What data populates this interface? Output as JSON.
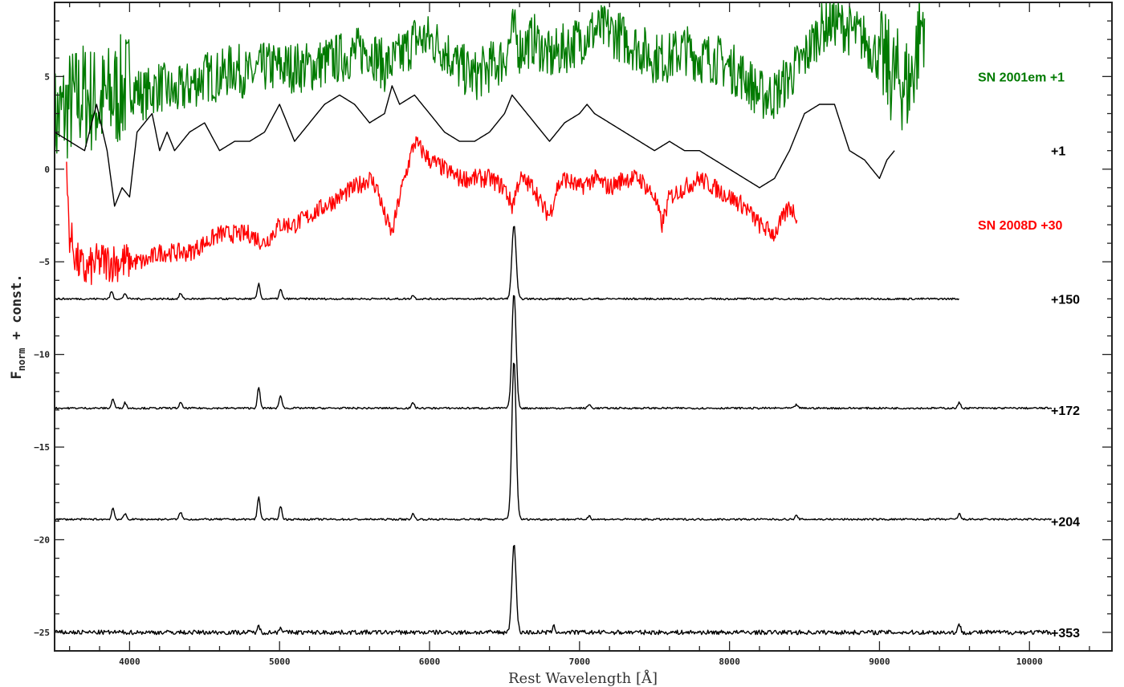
{
  "chart_data": {
    "type": "line",
    "title": "",
    "xlabel": "Rest Wavelength [Å]",
    "ylabel": "F",
    "ylabel_subscript": "norm",
    "ylabel_suffix": " + const.",
    "xlim": [
      3500,
      10550
    ],
    "ylim": [
      -26,
      9
    ],
    "x_ticks": [
      4000,
      5000,
      6000,
      7000,
      8000,
      9000,
      10000
    ],
    "x_tick_labels": [
      "4000",
      "5000",
      "6000",
      "7000",
      "8000",
      "9000",
      "10000"
    ],
    "y_ticks": [
      5,
      0,
      -5,
      -10,
      -15,
      -20,
      -25
    ],
    "y_tick_labels": [
      "5",
      "0",
      "−5",
      "−10",
      "−15",
      "−20",
      "−25"
    ],
    "grid": false,
    "series": [
      {
        "name": "SN 2001em +1",
        "color": "#007a00",
        "noise": 1.4,
        "x": [
          3500,
          3600,
          3700,
          3800,
          3900,
          4000,
          4100,
          4200,
          4300,
          4400,
          4500,
          4600,
          4700,
          4800,
          4900,
          5000,
          5200,
          5400,
          5600,
          5700,
          5800,
          5900,
          6000,
          6100,
          6200,
          6300,
          6400,
          6500,
          6560,
          6600,
          6700,
          6800,
          6900,
          7000,
          7100,
          7200,
          7300,
          7400,
          7500,
          7600,
          7700,
          7800,
          7900,
          8000,
          8100,
          8200,
          8300,
          8400,
          8500,
          8600,
          8700,
          8800,
          8900,
          9000,
          9100,
          9200,
          9300
        ],
        "y": [
          2.5,
          3.5,
          4.0,
          3.5,
          4.0,
          4.5,
          4.0,
          4.5,
          4.0,
          4.5,
          5.0,
          5.0,
          5.5,
          5.0,
          5.5,
          5.5,
          5.5,
          6.0,
          6.5,
          5.5,
          6.0,
          7.0,
          7.0,
          6.5,
          5.5,
          5.0,
          5.5,
          6.0,
          7.5,
          6.5,
          7.0,
          6.0,
          6.5,
          7.0,
          7.5,
          7.5,
          7.0,
          6.5,
          6.0,
          6.0,
          6.5,
          6.0,
          6.0,
          5.5,
          5.0,
          4.0,
          4.0,
          5.0,
          6.0,
          7.5,
          8.0,
          7.5,
          7.0,
          6.0,
          5.0,
          4.5,
          8.5
        ]
      },
      {
        "name": "+1",
        "color": "#000000",
        "noise": 0,
        "x": [
          3500,
          3600,
          3700,
          3780,
          3850,
          3900,
          3950,
          4000,
          4050,
          4100,
          4150,
          4200,
          4250,
          4300,
          4350,
          4400,
          4500,
          4600,
          4700,
          4800,
          4900,
          5000,
          5050,
          5100,
          5200,
          5300,
          5400,
          5500,
          5600,
          5700,
          5750,
          5800,
          5900,
          6000,
          6100,
          6200,
          6300,
          6400,
          6500,
          6550,
          6600,
          6700,
          6800,
          6900,
          7000,
          7050,
          7100,
          7200,
          7300,
          7400,
          7500,
          7600,
          7700,
          7800,
          7900,
          8000,
          8100,
          8200,
          8300,
          8400,
          8500,
          8600,
          8700,
          8800,
          8900,
          9000,
          9050,
          9100
        ],
        "y": [
          2.0,
          1.5,
          1.0,
          3.5,
          1.0,
          -2.0,
          -1.0,
          -1.5,
          2.0,
          2.5,
          3.0,
          1.0,
          2.0,
          1.0,
          1.5,
          2.0,
          2.5,
          1.0,
          1.5,
          1.5,
          2.0,
          3.5,
          2.5,
          1.5,
          2.5,
          3.5,
          4.0,
          3.5,
          2.5,
          3.0,
          4.5,
          3.5,
          4.0,
          3.0,
          2.0,
          1.5,
          1.5,
          2.0,
          3.0,
          4.0,
          3.5,
          2.5,
          1.5,
          2.5,
          3.0,
          3.5,
          3.0,
          2.5,
          2.0,
          1.5,
          1.0,
          1.5,
          1.0,
          1.0,
          0.5,
          0.0,
          -0.5,
          -1.0,
          -0.5,
          1.0,
          3.0,
          3.5,
          3.5,
          1.0,
          0.5,
          -0.5,
          0.5,
          1.0
        ]
      },
      {
        "name": "SN 2008D +30",
        "color": "#ff0000",
        "noise": 0.5,
        "x": [
          3580,
          3600,
          3650,
          3700,
          3800,
          3900,
          4000,
          4100,
          4200,
          4300,
          4400,
          4500,
          4600,
          4700,
          4800,
          4900,
          5000,
          5100,
          5200,
          5300,
          5400,
          5500,
          5600,
          5650,
          5700,
          5750,
          5800,
          5850,
          5900,
          6000,
          6100,
          6200,
          6300,
          6400,
          6500,
          6550,
          6600,
          6700,
          6750,
          6800,
          6850,
          6900,
          7000,
          7100,
          7200,
          7300,
          7400,
          7500,
          7550,
          7600,
          7700,
          7800,
          7900,
          8000,
          8100,
          8200,
          8300,
          8400,
          8450
        ],
        "y": [
          -0.5,
          -3.5,
          -5.0,
          -5.5,
          -5.0,
          -5.0,
          -5.0,
          -5.0,
          -4.5,
          -4.5,
          -4.5,
          -4.0,
          -3.5,
          -3.5,
          -3.5,
          -4.0,
          -3.0,
          -3.0,
          -2.5,
          -2.0,
          -1.5,
          -1.0,
          -0.5,
          -1.0,
          -2.5,
          -3.5,
          -1.5,
          0.0,
          1.5,
          0.5,
          0.0,
          -0.5,
          -0.5,
          -0.5,
          -1.0,
          -2.0,
          -0.5,
          -1.0,
          -2.0,
          -2.5,
          -1.0,
          -0.5,
          -1.0,
          -0.5,
          -1.0,
          -0.5,
          -0.5,
          -1.5,
          -3.0,
          -1.5,
          -1.0,
          -0.5,
          -1.0,
          -1.5,
          -2.0,
          -3.0,
          -3.5,
          -2.0,
          -2.5
        ]
      },
      {
        "name": "+150",
        "color": "#000000",
        "noise": 0.05,
        "base": -7.0,
        "x_end": 9530,
        "x": [
          3500,
          9530
        ],
        "lines": [
          [
            3880,
            0.4
          ],
          [
            3970,
            0.3
          ],
          [
            4340,
            0.3
          ],
          [
            4861,
            0.8
          ],
          [
            5007,
            0.5
          ],
          [
            5890,
            0.2
          ],
          [
            6563,
            4.0
          ]
        ]
      },
      {
        "name": "+172",
        "color": "#000000",
        "noise": 0.05,
        "base": -12.9,
        "x_end": 10150,
        "x": [
          3500,
          10150
        ],
        "lines": [
          [
            3889,
            0.5
          ],
          [
            3970,
            0.3
          ],
          [
            4340,
            0.3
          ],
          [
            4861,
            1.1
          ],
          [
            5007,
            0.7
          ],
          [
            5890,
            0.3
          ],
          [
            6563,
            6.2
          ],
          [
            7065,
            0.2
          ],
          [
            8446,
            0.2
          ],
          [
            9532,
            0.3
          ]
        ]
      },
      {
        "name": "+204",
        "color": "#000000",
        "noise": 0.05,
        "base": -18.9,
        "x_end": 10150,
        "x": [
          3500,
          10150
        ],
        "lines": [
          [
            3889,
            0.6
          ],
          [
            3970,
            0.3
          ],
          [
            4340,
            0.4
          ],
          [
            4861,
            1.2
          ],
          [
            5007,
            0.7
          ],
          [
            5890,
            0.3
          ],
          [
            6563,
            8.6
          ],
          [
            7065,
            0.2
          ],
          [
            8446,
            0.2
          ],
          [
            9532,
            0.3
          ]
        ]
      },
      {
        "name": "+353",
        "color": "#000000",
        "noise": 0.12,
        "base": -25.0,
        "x_end": 10150,
        "x": [
          3500,
          10150
        ],
        "lines": [
          [
            4861,
            0.3
          ],
          [
            5007,
            0.3
          ],
          [
            6563,
            4.7
          ],
          [
            6830,
            0.3
          ],
          [
            9532,
            0.4
          ]
        ]
      }
    ],
    "labels": [
      {
        "text": "SN 2001em +1",
        "color": "#007a00",
        "y": 5.0
      },
      {
        "text": "+1",
        "color": "#000000",
        "y": 1.0
      },
      {
        "text": "SN 2008D +30",
        "color": "#ff0000",
        "y": -3.0
      },
      {
        "text": "+150",
        "color": "#000000",
        "y": -7.0
      },
      {
        "text": "+172",
        "color": "#000000",
        "y": -13.0
      },
      {
        "text": "+204",
        "color": "#000000",
        "y": -19.0
      },
      {
        "text": "+353",
        "color": "#000000",
        "y": -25.0
      }
    ]
  }
}
